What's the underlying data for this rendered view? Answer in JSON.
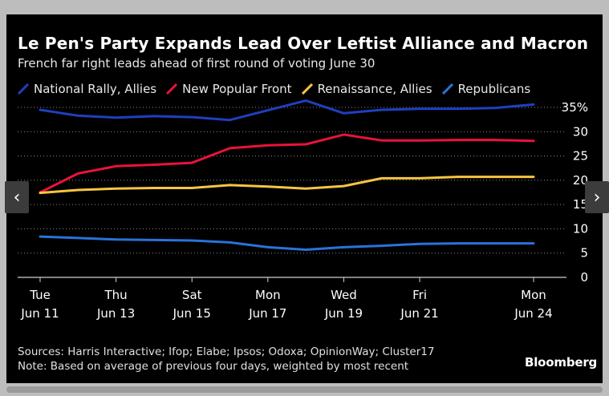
{
  "title": "Le Pen's Party Expands Lead Over Leftist Alliance and Macron",
  "subtitle": "French far right leads ahead of first round of voting June 30",
  "brand": "Bloomberg",
  "sources": "Sources: Harris Interactive; Ifop; Elabe; Ipsos; Odoxa; OpinionWay; Cluster17",
  "note": "Note: Based on average of previous four days, weighted by most recent",
  "nav": {
    "prev": "‹",
    "next": "›"
  },
  "chart_data": {
    "type": "line",
    "title": "Le Pen's Party Expands Lead Over Leftist Alliance and Macron",
    "xlabel": "",
    "ylabel": "",
    "ylim": [
      0,
      35
    ],
    "y_ticks": [
      "35%",
      "30",
      "25",
      "20",
      "15",
      "10",
      "5",
      "0"
    ],
    "y_tick_values": [
      35,
      30,
      25,
      20,
      15,
      10,
      5,
      0
    ],
    "grid": true,
    "legend": "top-left",
    "x": [
      "Jun 11",
      "Jun 12",
      "Jun 13",
      "Jun 14",
      "Jun 15",
      "Jun 16",
      "Jun 17",
      "Jun 18",
      "Jun 19",
      "Jun 20",
      "Jun 21",
      "Jun 22",
      "Jun 23",
      "Jun 24"
    ],
    "x_ticks": [
      {
        "index": 0,
        "day": "Tue",
        "date": "Jun 11"
      },
      {
        "index": 2,
        "day": "Thu",
        "date": "Jun 13"
      },
      {
        "index": 4,
        "day": "Sat",
        "date": "Jun 15"
      },
      {
        "index": 6,
        "day": "Mon",
        "date": "Jun 17"
      },
      {
        "index": 8,
        "day": "Wed",
        "date": "Jun 19"
      },
      {
        "index": 10,
        "day": "Fri",
        "date": "Jun 21"
      },
      {
        "index": 13,
        "day": "Mon",
        "date": "Jun 24"
      }
    ],
    "series": [
      {
        "name": "National Rally, Allies",
        "color": "#1f3fbf",
        "values": [
          34.5,
          33.3,
          32.9,
          33.2,
          33.0,
          32.4,
          34.4,
          36.4,
          33.8,
          34.5,
          34.7,
          34.7,
          34.9,
          35.6
        ]
      },
      {
        "name": "New Popular Front",
        "color": "#e8133a",
        "values": [
          17.5,
          21.4,
          22.9,
          23.2,
          23.6,
          26.6,
          27.2,
          27.4,
          29.4,
          28.2,
          28.2,
          28.3,
          28.3,
          28.1
        ]
      },
      {
        "name": "Renaissance, Allies",
        "color": "#f5c542",
        "values": [
          17.4,
          18.0,
          18.3,
          18.4,
          18.4,
          19.0,
          18.7,
          18.3,
          18.8,
          20.4,
          20.4,
          20.7,
          20.7,
          20.7
        ]
      },
      {
        "name": "Republicans",
        "color": "#2a72d9",
        "values": [
          8.4,
          8.1,
          7.8,
          7.7,
          7.6,
          7.2,
          6.2,
          5.7,
          6.2,
          6.5,
          6.9,
          7.0,
          7.0,
          7.0
        ]
      }
    ]
  }
}
